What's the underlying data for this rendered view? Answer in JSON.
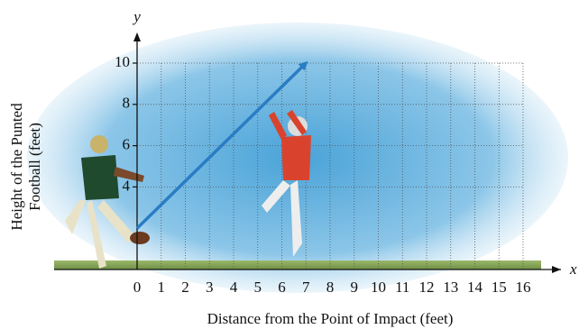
{
  "chart_data": {
    "type": "line",
    "xlabel": "Distance from the Point of Impact (feet)",
    "ylabel": [
      "Height of the Punted",
      "Football (feet)"
    ],
    "x_axis_name": "x",
    "y_axis_name": "y",
    "xlim": [
      0,
      16
    ],
    "ylim": [
      0,
      10
    ],
    "xticks": [
      0,
      1,
      2,
      3,
      4,
      5,
      6,
      7,
      8,
      9,
      10,
      11,
      12,
      13,
      14,
      15,
      16
    ],
    "yticks": [
      4,
      6,
      8,
      10
    ],
    "grid": true,
    "series": [
      {
        "color": "#2a7cc4",
        "x": [
          0,
          7
        ],
        "values": [
          2,
          10
        ]
      }
    ]
  }
}
